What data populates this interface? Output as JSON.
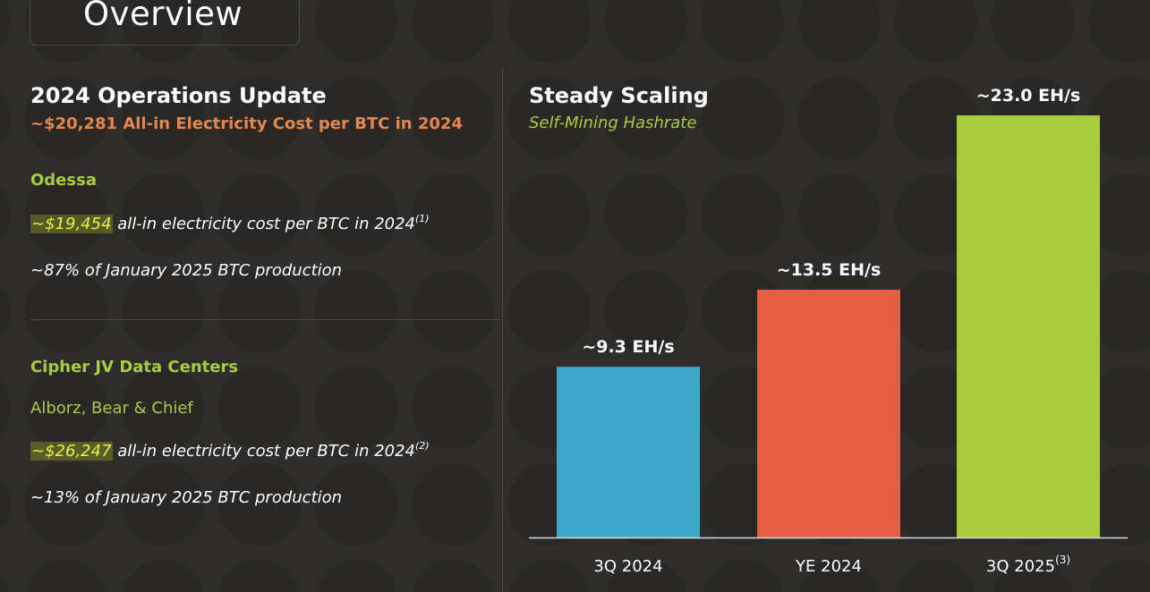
{
  "page_title": "Overview",
  "left": {
    "heading": "2024 Operations Update",
    "subheading": "~$20,281 All-in Electricity Cost per BTC in 2024",
    "odessa": {
      "title": "Odessa",
      "cost_value": "~$19,454",
      "cost_text": " all-in electricity cost per BTC in 2024",
      "cost_note": "(1)",
      "production": "~87% of January 2025 BTC production"
    },
    "jv": {
      "title": "Cipher JV Data Centers",
      "subtitle": "Alborz, Bear & Chief",
      "cost_value": "~$26,247",
      "cost_text": " all-in electricity cost per BTC in 2024",
      "cost_note": "(2)",
      "production": "~13% of January 2025 BTC production"
    }
  },
  "right": {
    "heading": "Steady Scaling",
    "subheading": "Self-Mining Hashrate"
  },
  "chart_data": {
    "type": "bar",
    "title": "Self-Mining Hashrate",
    "categories": [
      "3Q 2024",
      "YE 2024",
      "3Q 2025"
    ],
    "category_notes": [
      "",
      "",
      "(3)"
    ],
    "values": [
      9.3,
      13.5,
      23.0
    ],
    "labels": [
      "~9.3 EH/s",
      "~13.5 EH/s",
      "~23.0 EH/s"
    ],
    "colors": [
      "#3ea8cc",
      "#e45e45",
      "#a9cb3e"
    ],
    "unit": "EH/s",
    "ylim": [
      0,
      23.0
    ],
    "grid": false
  }
}
